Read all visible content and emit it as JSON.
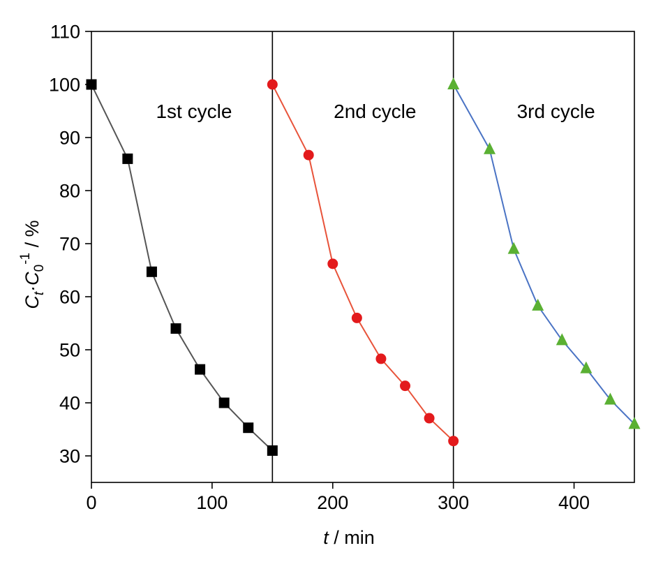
{
  "chart_data": {
    "type": "line",
    "xlabel": {
      "var": "t",
      "rest": " / min"
    },
    "ylabel": {
      "c1": "C",
      "s1": "t",
      "mid": "·C",
      "s2": "0",
      "sup": "-1",
      "rest": " / %"
    },
    "xlim": [
      0,
      450
    ],
    "ylim": [
      25,
      110
    ],
    "xticks": [
      0,
      100,
      200,
      300,
      400
    ],
    "yticks": [
      30,
      40,
      50,
      60,
      70,
      80,
      90,
      100,
      110
    ],
    "dividers": [
      150,
      300
    ],
    "grid": false,
    "legend": "none",
    "annotations": [
      {
        "text": "1st cycle",
        "x": 85,
        "y": 95
      },
      {
        "text": "2nd cycle",
        "x": 235,
        "y": 95
      },
      {
        "text": "3rd cycle",
        "x": 385,
        "y": 95
      }
    ],
    "series": [
      {
        "line_color": "#555555",
        "marker_color": "#000000",
        "marker": "square",
        "points": [
          [
            0,
            100
          ],
          [
            30,
            86
          ],
          [
            50,
            64.7
          ],
          [
            70,
            54
          ],
          [
            90,
            46.3
          ],
          [
            110,
            40
          ],
          [
            130,
            35.3
          ],
          [
            150,
            31
          ]
        ]
      },
      {
        "line_color": "#e8533a",
        "marker_color": "#e31a1c",
        "marker": "circle",
        "points": [
          [
            150,
            100
          ],
          [
            180,
            86.7
          ],
          [
            200,
            66.2
          ],
          [
            220,
            56
          ],
          [
            240,
            48.3
          ],
          [
            260,
            43.2
          ],
          [
            280,
            37.1
          ],
          [
            300,
            32.8
          ]
        ]
      },
      {
        "line_color": "#4a73c4",
        "marker_color": "#5ab033",
        "marker": "triangle",
        "points": [
          [
            300,
            100
          ],
          [
            330,
            87.8
          ],
          [
            350,
            69
          ],
          [
            370,
            58.3
          ],
          [
            390,
            51.8
          ],
          [
            410,
            46.5
          ],
          [
            430,
            40.6
          ],
          [
            450,
            36
          ]
        ]
      }
    ]
  }
}
